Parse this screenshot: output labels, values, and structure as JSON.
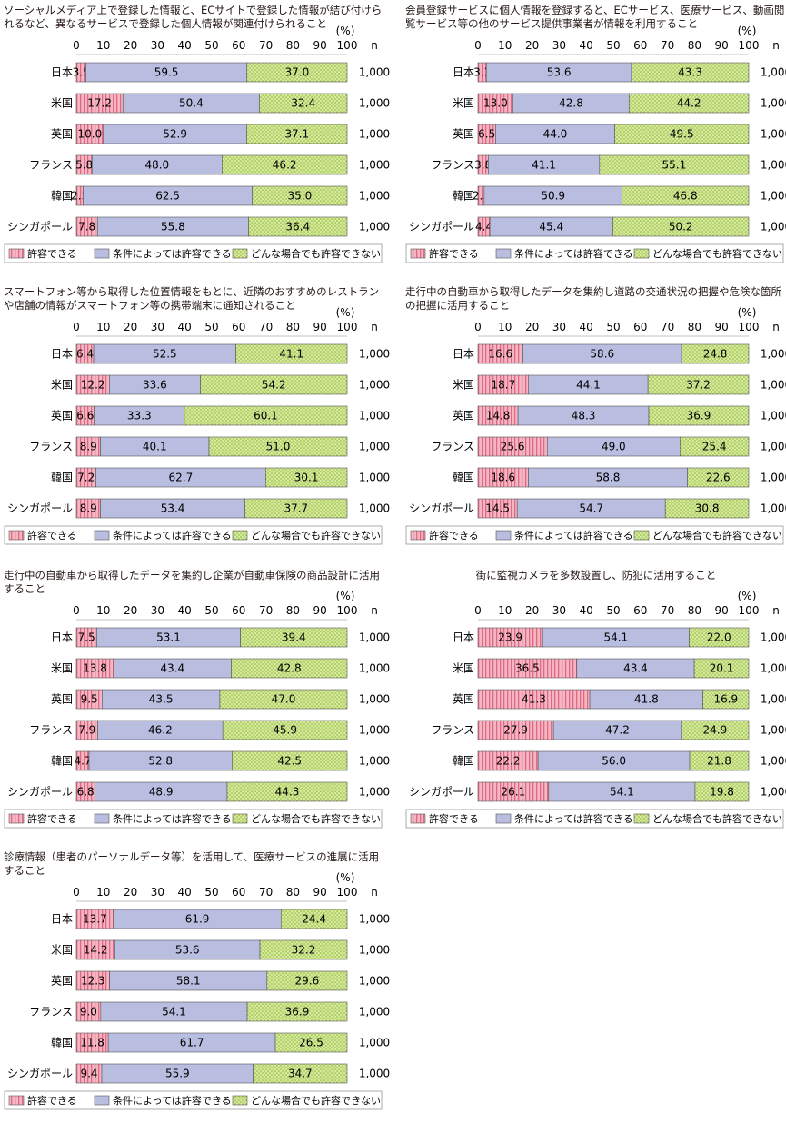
{
  "common": {
    "percent_label": "(%)",
    "n_header": "n",
    "countries": [
      "日本",
      "米国",
      "英国",
      "フランス",
      "韓国",
      "シンガポール"
    ],
    "n_values": [
      "1,000",
      "1,000",
      "1,000",
      "1,000",
      "1,000",
      "1,000"
    ],
    "ticks": [
      "0",
      "10",
      "20",
      "30",
      "40",
      "50",
      "60",
      "70",
      "80",
      "90",
      "100"
    ],
    "legend": [
      "許容できる",
      "条件によっては許容できる",
      "どんな場合でも許容できない"
    ],
    "colors": {
      "allow": "#f4b6c2",
      "conditional": "#b9bde0",
      "never": "#d6e89c",
      "allow_stripe": "#e06a85",
      "never_dot": "#8ab833",
      "stroke": "#555555"
    }
  },
  "chart_data": [
    {
      "type": "bar",
      "title": "ソーシャルメディア上で登録した情報と、ECサイトで登録した情報が結び付けられるなど、異なるサービスで登録した個人情報が関連付けられること",
      "categories": [
        "日本",
        "米国",
        "英国",
        "フランス",
        "韓国",
        "シンガポール"
      ],
      "series": [
        {
          "name": "許容できる",
          "values": [
            3.5,
            17.2,
            10.0,
            5.8,
            2.5,
            7.8
          ]
        },
        {
          "name": "条件によっては許容できる",
          "values": [
            59.5,
            50.4,
            52.9,
            48.0,
            62.5,
            55.8
          ]
        },
        {
          "name": "どんな場合でも許容できない",
          "values": [
            37.0,
            32.4,
            37.1,
            46.2,
            35.0,
            36.4
          ]
        }
      ],
      "n": [
        "1,000",
        "1,000",
        "1,000",
        "1,000",
        "1,000",
        "1,000"
      ],
      "xlim": [
        0,
        100
      ],
      "stacked": true,
      "legend_position": "bottom"
    },
    {
      "type": "bar",
      "title": "会員登録サービスに個人情報を登録すると、ECサービス、医療サービス、動画閲覧サービス等の他のサービス提供事業者が情報を利用すること",
      "categories": [
        "日本",
        "米国",
        "英国",
        "フランス",
        "韓国",
        "シンガポール"
      ],
      "series": [
        {
          "name": "許容できる",
          "values": [
            3.1,
            13.0,
            6.5,
            3.8,
            2.3,
            4.4
          ]
        },
        {
          "name": "条件によっては許容できる",
          "values": [
            53.6,
            42.8,
            44.0,
            41.1,
            50.9,
            45.4
          ]
        },
        {
          "name": "どんな場合でも許容できない",
          "values": [
            43.3,
            44.2,
            49.5,
            55.1,
            46.8,
            50.2
          ]
        }
      ],
      "n": [
        "1,000",
        "1,000",
        "1,000",
        "1,000",
        "1,000",
        "1,000"
      ],
      "xlim": [
        0,
        100
      ],
      "stacked": true,
      "legend_position": "bottom"
    },
    {
      "type": "bar",
      "title": "スマートフォン等から取得した位置情報をもとに、近隣のおすすめのレストランや店舗の情報がスマートフォン等の携帯端末に通知されること",
      "categories": [
        "日本",
        "米国",
        "英国",
        "フランス",
        "韓国",
        "シンガポール"
      ],
      "series": [
        {
          "name": "許容できる",
          "values": [
            6.4,
            12.2,
            6.6,
            8.9,
            7.2,
            8.9
          ]
        },
        {
          "name": "条件によっては許容できる",
          "values": [
            52.5,
            33.6,
            33.3,
            40.1,
            62.7,
            53.4
          ]
        },
        {
          "name": "どんな場合でも許容できない",
          "values": [
            41.1,
            54.2,
            60.1,
            51.0,
            30.1,
            37.7
          ]
        }
      ],
      "n": [
        "1,000",
        "1,000",
        "1,000",
        "1,000",
        "1,000",
        "1,000"
      ],
      "xlim": [
        0,
        100
      ],
      "stacked": true,
      "legend_position": "bottom"
    },
    {
      "type": "bar",
      "title": "走行中の自動車から取得したデータを集約し道路の交通状況の把握や危険な箇所の把握に活用すること",
      "categories": [
        "日本",
        "米国",
        "英国",
        "フランス",
        "韓国",
        "シンガポール"
      ],
      "series": [
        {
          "name": "許容できる",
          "values": [
            16.6,
            18.7,
            14.8,
            25.6,
            18.6,
            14.5
          ]
        },
        {
          "name": "条件によっては許容できる",
          "values": [
            58.6,
            44.1,
            48.3,
            49.0,
            58.8,
            54.7
          ]
        },
        {
          "name": "どんな場合でも許容できない",
          "values": [
            24.8,
            37.2,
            36.9,
            25.4,
            22.6,
            30.8
          ]
        }
      ],
      "n": [
        "1,000",
        "1,000",
        "1,000",
        "1,000",
        "1,000",
        "1,000"
      ],
      "xlim": [
        0,
        100
      ],
      "stacked": true,
      "legend_position": "bottom"
    },
    {
      "type": "bar",
      "title": "走行中の自動車から取得したデータを集約し企業が自動車保険の商品設計に活用すること",
      "categories": [
        "日本",
        "米国",
        "英国",
        "フランス",
        "韓国",
        "シンガポール"
      ],
      "series": [
        {
          "name": "許容できる",
          "values": [
            7.5,
            13.8,
            9.5,
            7.9,
            4.7,
            6.8
          ]
        },
        {
          "name": "条件によっては許容できる",
          "values": [
            53.1,
            43.4,
            43.5,
            46.2,
            52.8,
            48.9
          ]
        },
        {
          "name": "どんな場合でも許容できない",
          "values": [
            39.4,
            42.8,
            47.0,
            45.9,
            42.5,
            44.3
          ]
        }
      ],
      "n": [
        "1,000",
        "1,000",
        "1,000",
        "1,000",
        "1,000",
        "1,000"
      ],
      "xlim": [
        0,
        100
      ],
      "stacked": true,
      "legend_position": "bottom"
    },
    {
      "type": "bar",
      "title": "街に監視カメラを多数設置し、防犯に活用すること",
      "categories": [
        "日本",
        "米国",
        "英国",
        "フランス",
        "韓国",
        "シンガポール"
      ],
      "series": [
        {
          "name": "許容できる",
          "values": [
            23.9,
            36.5,
            41.3,
            27.9,
            22.2,
            26.1
          ]
        },
        {
          "name": "条件によっては許容できる",
          "values": [
            54.1,
            43.4,
            41.8,
            47.2,
            56.0,
            54.1
          ]
        },
        {
          "name": "どんな場合でも許容できない",
          "values": [
            22.0,
            20.1,
            16.9,
            24.9,
            21.8,
            19.8
          ]
        }
      ],
      "n": [
        "1,000",
        "1,000",
        "1,000",
        "1,000",
        "1,000",
        "1,000"
      ],
      "xlim": [
        0,
        100
      ],
      "stacked": true,
      "legend_position": "bottom"
    },
    {
      "type": "bar",
      "title": "診療情報（患者のパーソナルデータ等）を活用して、医療サービスの進展に活用すること",
      "categories": [
        "日本",
        "米国",
        "英国",
        "フランス",
        "韓国",
        "シンガポール"
      ],
      "series": [
        {
          "name": "許容できる",
          "values": [
            13.7,
            14.2,
            12.3,
            9.0,
            11.8,
            9.4
          ]
        },
        {
          "name": "条件によっては許容できる",
          "values": [
            61.9,
            53.6,
            58.1,
            54.1,
            61.7,
            55.9
          ]
        },
        {
          "name": "どんな場合でも許容できない",
          "values": [
            24.4,
            32.2,
            29.6,
            36.9,
            26.5,
            34.7
          ]
        }
      ],
      "n": [
        "1,000",
        "1,000",
        "1,000",
        "1,000",
        "1,000",
        "1,000"
      ],
      "xlim": [
        0,
        100
      ],
      "stacked": true,
      "legend_position": "bottom"
    }
  ]
}
